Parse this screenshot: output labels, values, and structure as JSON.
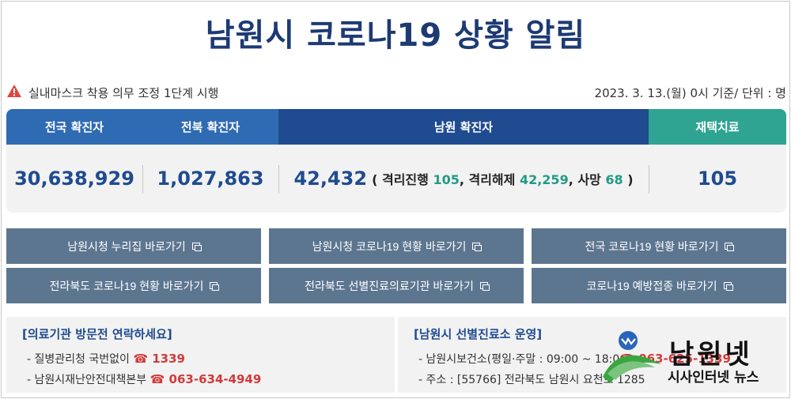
{
  "title": "남원시 코로나19 상황 알림",
  "notice": {
    "icon": "warning-icon",
    "text": "실내마스크 착용 의무 조정 1단계 시행",
    "date": "2023. 3. 13.(월) 0시 기준/ 단위 : 명"
  },
  "stats": {
    "national_label": "전국 확진자",
    "jeonbuk_label": "전북 확진자",
    "namwon_label": "남원 확진자",
    "home_label": "재택치료",
    "national_value": "30,638,929",
    "jeonbuk_value": "1,027,863",
    "namwon_value": "42,432",
    "detail": {
      "open": "( 격리진행",
      "isolating": "105",
      "released_label": ", 격리해제",
      "released": "42,259",
      "death_label": ", 사망",
      "death": "68",
      "close": ")"
    },
    "home_value": "105"
  },
  "links": [
    "남원시청 누리집 바로가기",
    "남원시청 코로나19 현황 바로가기",
    "전국 코로나19 현황 바로가기",
    "전라북도 코로나19 현황 바로가기",
    "전라북도 선별진료의료기관 바로가기",
    "코로나19 예방접종 바로가기"
  ],
  "medical": {
    "title": "[의료기관 방문전 연락하세요]",
    "line1_label": "- 질병관리청 국번없이",
    "line1_phone": "☎ 1339",
    "line2_label": "- 남원시재난안전대책본부",
    "line2_phone": "☎ 063-634-4949"
  },
  "clinic": {
    "title": "[남원시 선별진료소 운영]",
    "line1_label": "- 남원시보건소(평일·주말 : 09:00 ~ 18:0",
    "line1_phone": "☎ 063-625-1339",
    "line2_label": "- 주소 : [55766] 전라북도 남원시 요천로 1285"
  },
  "logo": {
    "name": "남원넷",
    "sub": "시사인터넷 뉴스",
    "colors": {
      "green": "#3aa640",
      "blue": "#2a66b8"
    }
  }
}
